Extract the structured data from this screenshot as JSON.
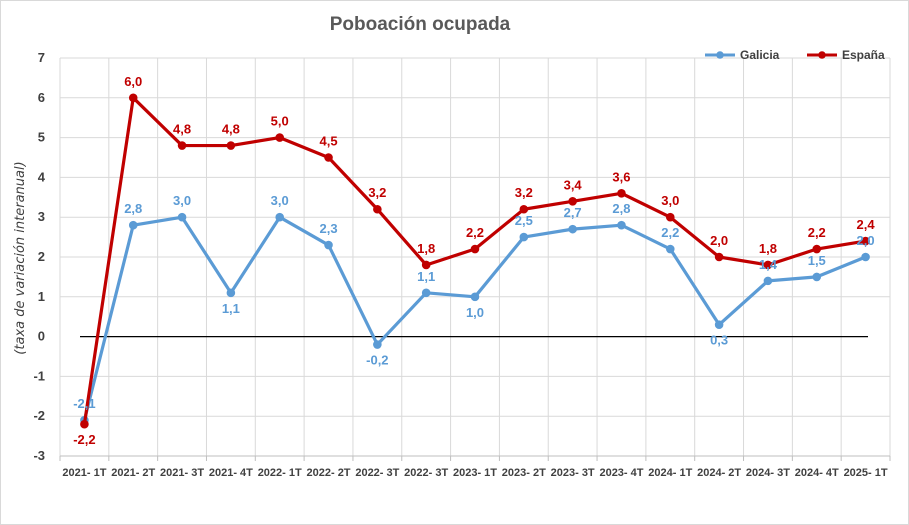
{
  "chart_data": {
    "type": "line",
    "title": "Poboación ocupada",
    "ylabel": "(taxa de variación interanual)",
    "xlabel": "",
    "ylim": [
      -3,
      7
    ],
    "yticks": [
      "-3",
      "-2",
      "-1",
      "0",
      "1",
      "2",
      "3",
      "4",
      "5",
      "6",
      "7"
    ],
    "grid": true,
    "legend_position": "top-right",
    "categories": [
      "2021- 1T",
      "2021- 2T",
      "2021- 3T",
      "2021- 4T",
      "2022- 1T",
      "2022- 2T",
      "2022- 3T",
      "2022- 3T",
      "2023- 1T",
      "2023- 2T",
      "2023- 3T",
      "2023- 4T",
      "2024- 1T",
      "2024- 2T",
      "2024- 3T",
      "2024- 4T",
      "2025- 1T"
    ],
    "series": [
      {
        "name": "Galicia",
        "color": "#5B9BD5",
        "values": [
          -2.1,
          2.8,
          3.0,
          1.1,
          3.0,
          2.3,
          -0.2,
          1.1,
          1.0,
          2.5,
          2.7,
          2.8,
          2.2,
          0.3,
          1.4,
          1.5,
          2.0
        ],
        "labels": [
          "-2,1",
          "2,8",
          "3,0",
          "1,1",
          "3,0",
          "2,3",
          "-0,2",
          "1,1",
          "1,0",
          "2,5",
          "2,7",
          "2,8",
          "2,2",
          "0,3",
          "1,4",
          "1,5",
          "2,0"
        ]
      },
      {
        "name": "España",
        "color": "#C00000",
        "values": [
          -2.2,
          6.0,
          4.8,
          4.8,
          5.0,
          4.5,
          3.2,
          1.8,
          2.2,
          3.2,
          3.4,
          3.6,
          3.0,
          2.0,
          1.8,
          2.2,
          2.4
        ],
        "labels": [
          "-2,2",
          "6,0",
          "4,8",
          "4,8",
          "5,0",
          "4,5",
          "3,2",
          "1,8",
          "2,2",
          "3,2",
          "3,4",
          "3,6",
          "3,0",
          "2,0",
          "1,8",
          "2,2",
          "2,4"
        ]
      }
    ]
  }
}
